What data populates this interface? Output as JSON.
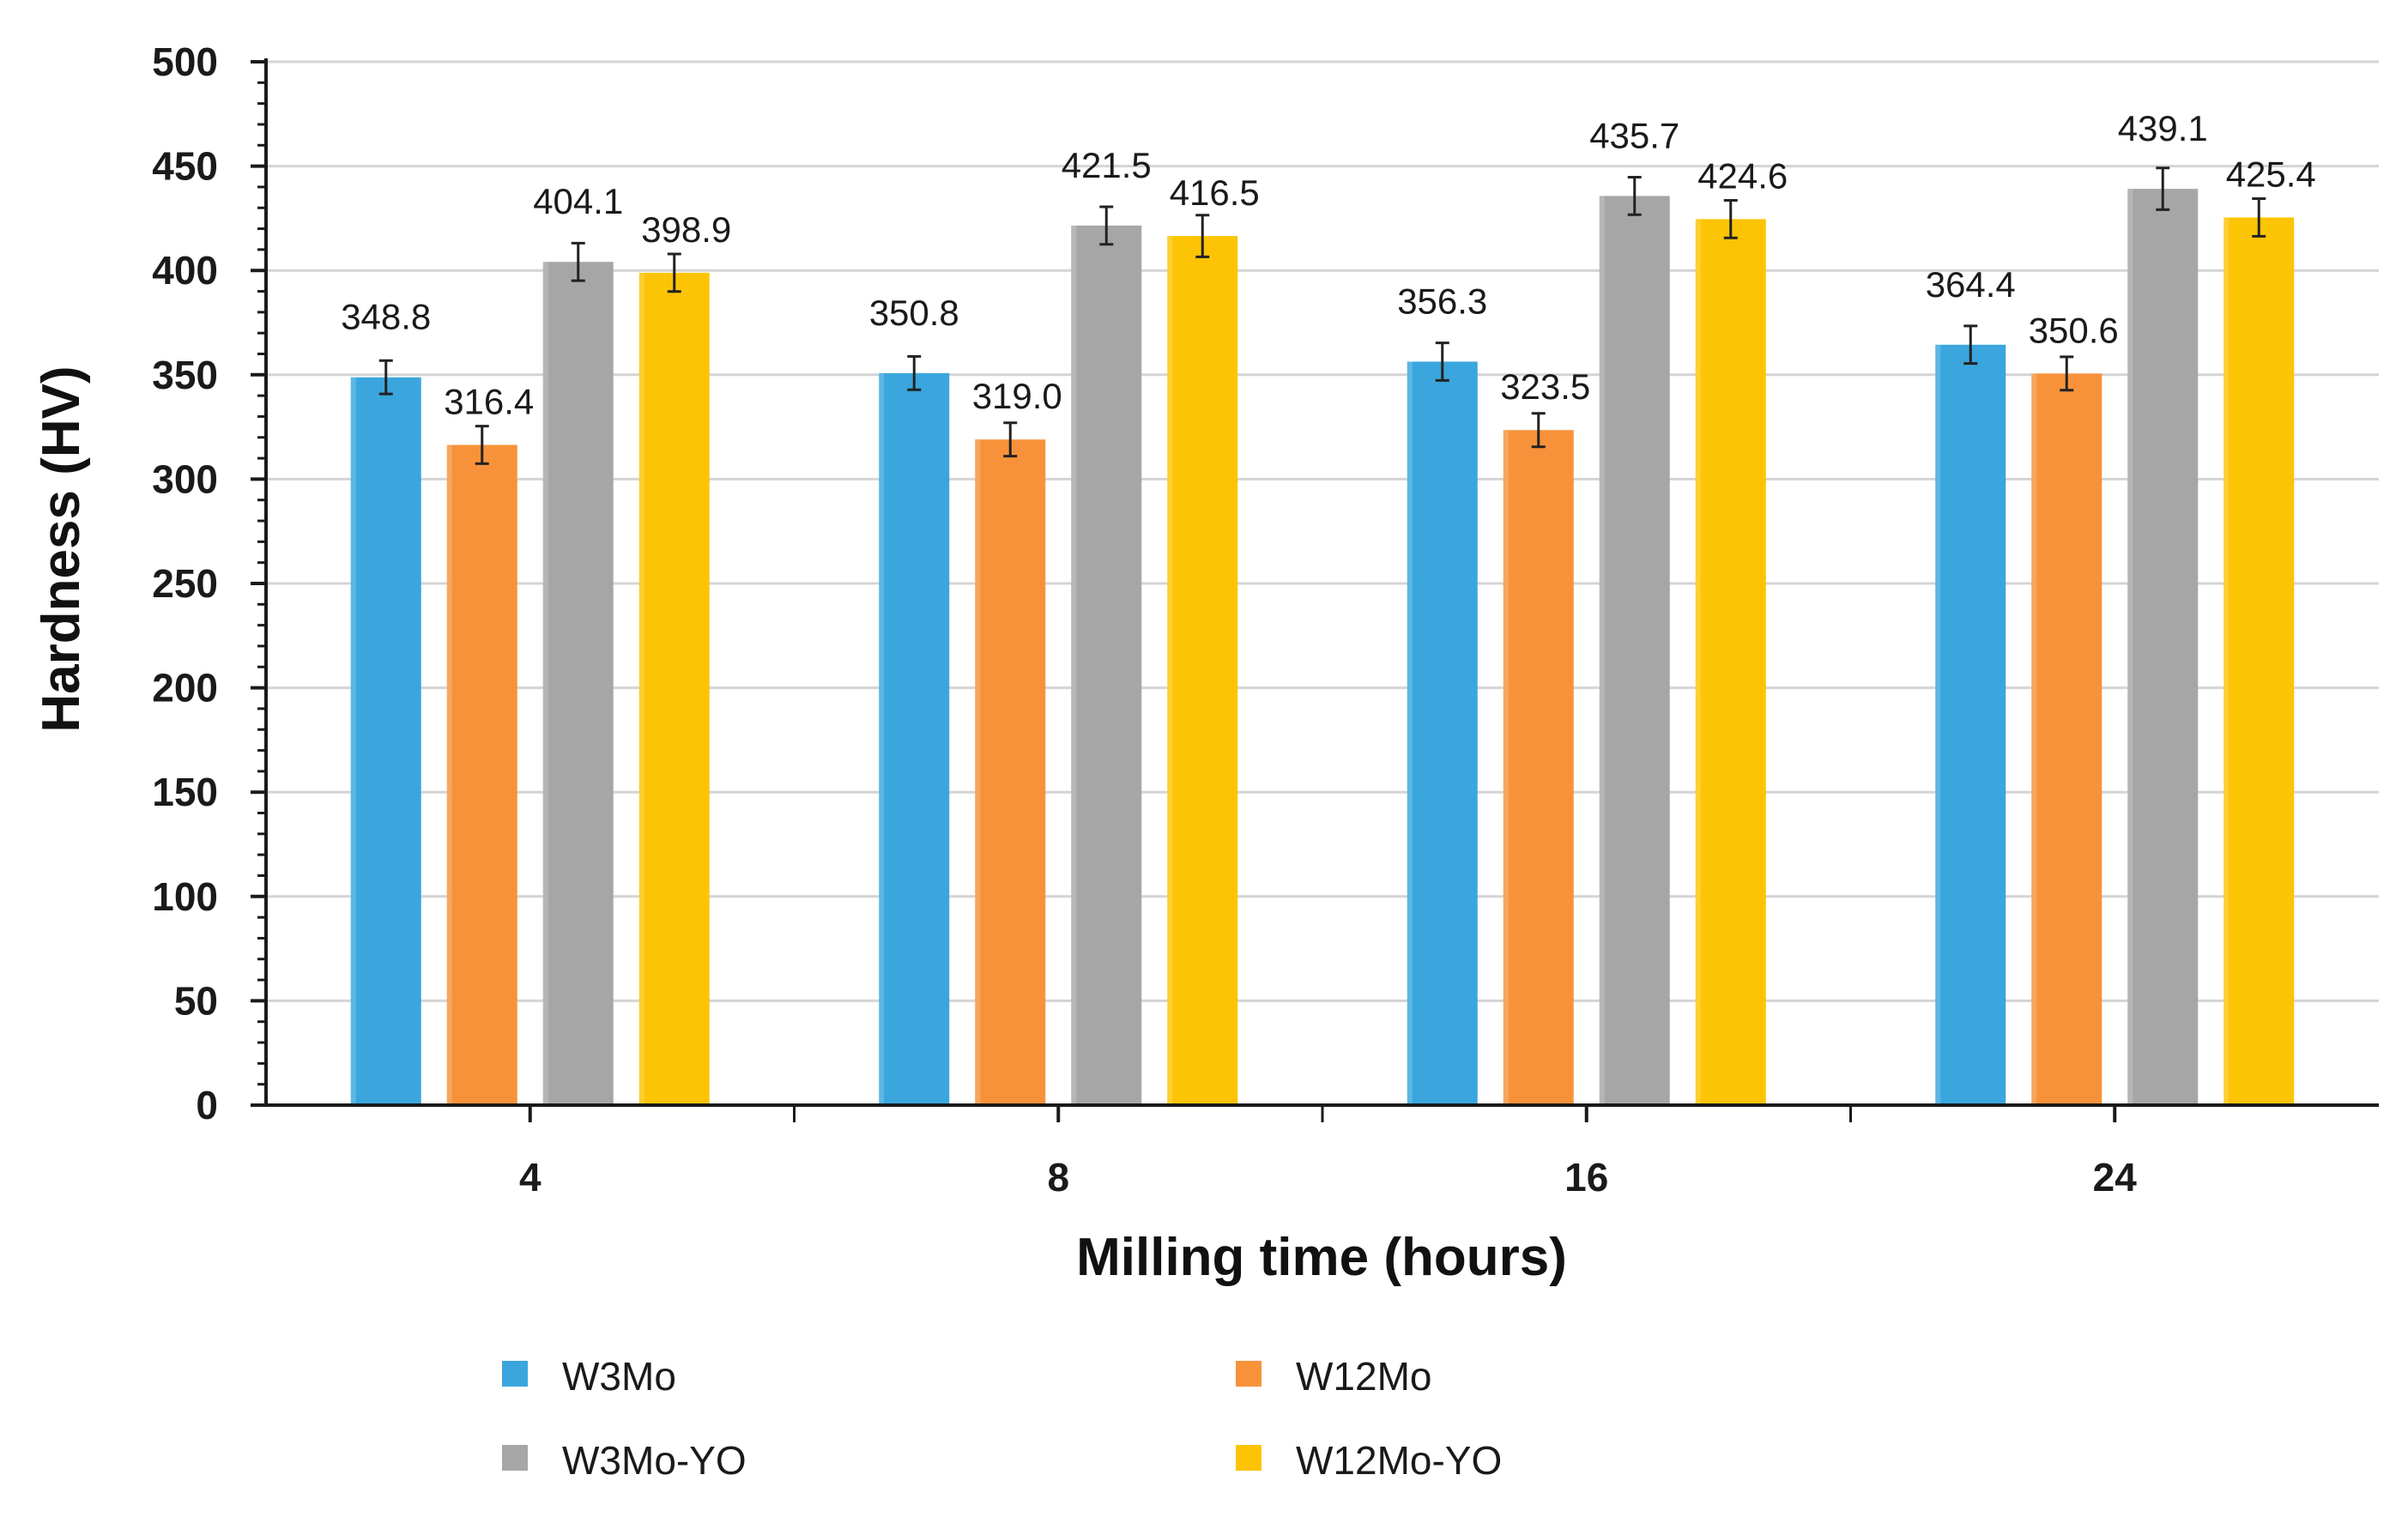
{
  "chart_data": {
    "type": "bar",
    "title": "",
    "xlabel": "Milling time (hours)",
    "ylabel": "Hardness (HV)",
    "ylim": [
      0,
      500
    ],
    "ytick_step": 50,
    "yticks": [
      "0",
      "50",
      "100",
      "150",
      "200",
      "250",
      "300",
      "350",
      "400",
      "450",
      "500"
    ],
    "grid": true,
    "legend_position": "bottom",
    "categories": [
      "4",
      "8",
      "16",
      "24"
    ],
    "series": [
      {
        "name": "W3Mo",
        "color": "#3aa6dd",
        "values": [
          348.8,
          350.8,
          356.3,
          364.4
        ],
        "labels": [
          "348.8",
          "350.8",
          "356.3",
          "364.4"
        ],
        "errors": [
          8,
          8,
          9,
          9
        ]
      },
      {
        "name": "W12Mo",
        "color": "#f7923a",
        "values": [
          316.4,
          319.0,
          323.5,
          350.6
        ],
        "labels": [
          "316.4",
          "319.0",
          "323.5",
          "350.6"
        ],
        "errors": [
          9,
          8,
          8,
          8
        ]
      },
      {
        "name": "W3Mo-YO",
        "color": "#a6a6a6",
        "values": [
          404.1,
          421.5,
          435.7,
          439.1
        ],
        "labels": [
          "404.1",
          "421.5",
          "435.7",
          "439.1"
        ],
        "errors": [
          9,
          9,
          9,
          10
        ]
      },
      {
        "name": "W12Mo-YO",
        "color": "#fdc405",
        "values": [
          398.9,
          416.5,
          424.6,
          425.4
        ],
        "labels": [
          "398.9",
          "416.5",
          "424.6",
          "425.4"
        ],
        "errors": [
          9,
          10,
          9,
          9
        ]
      }
    ]
  }
}
